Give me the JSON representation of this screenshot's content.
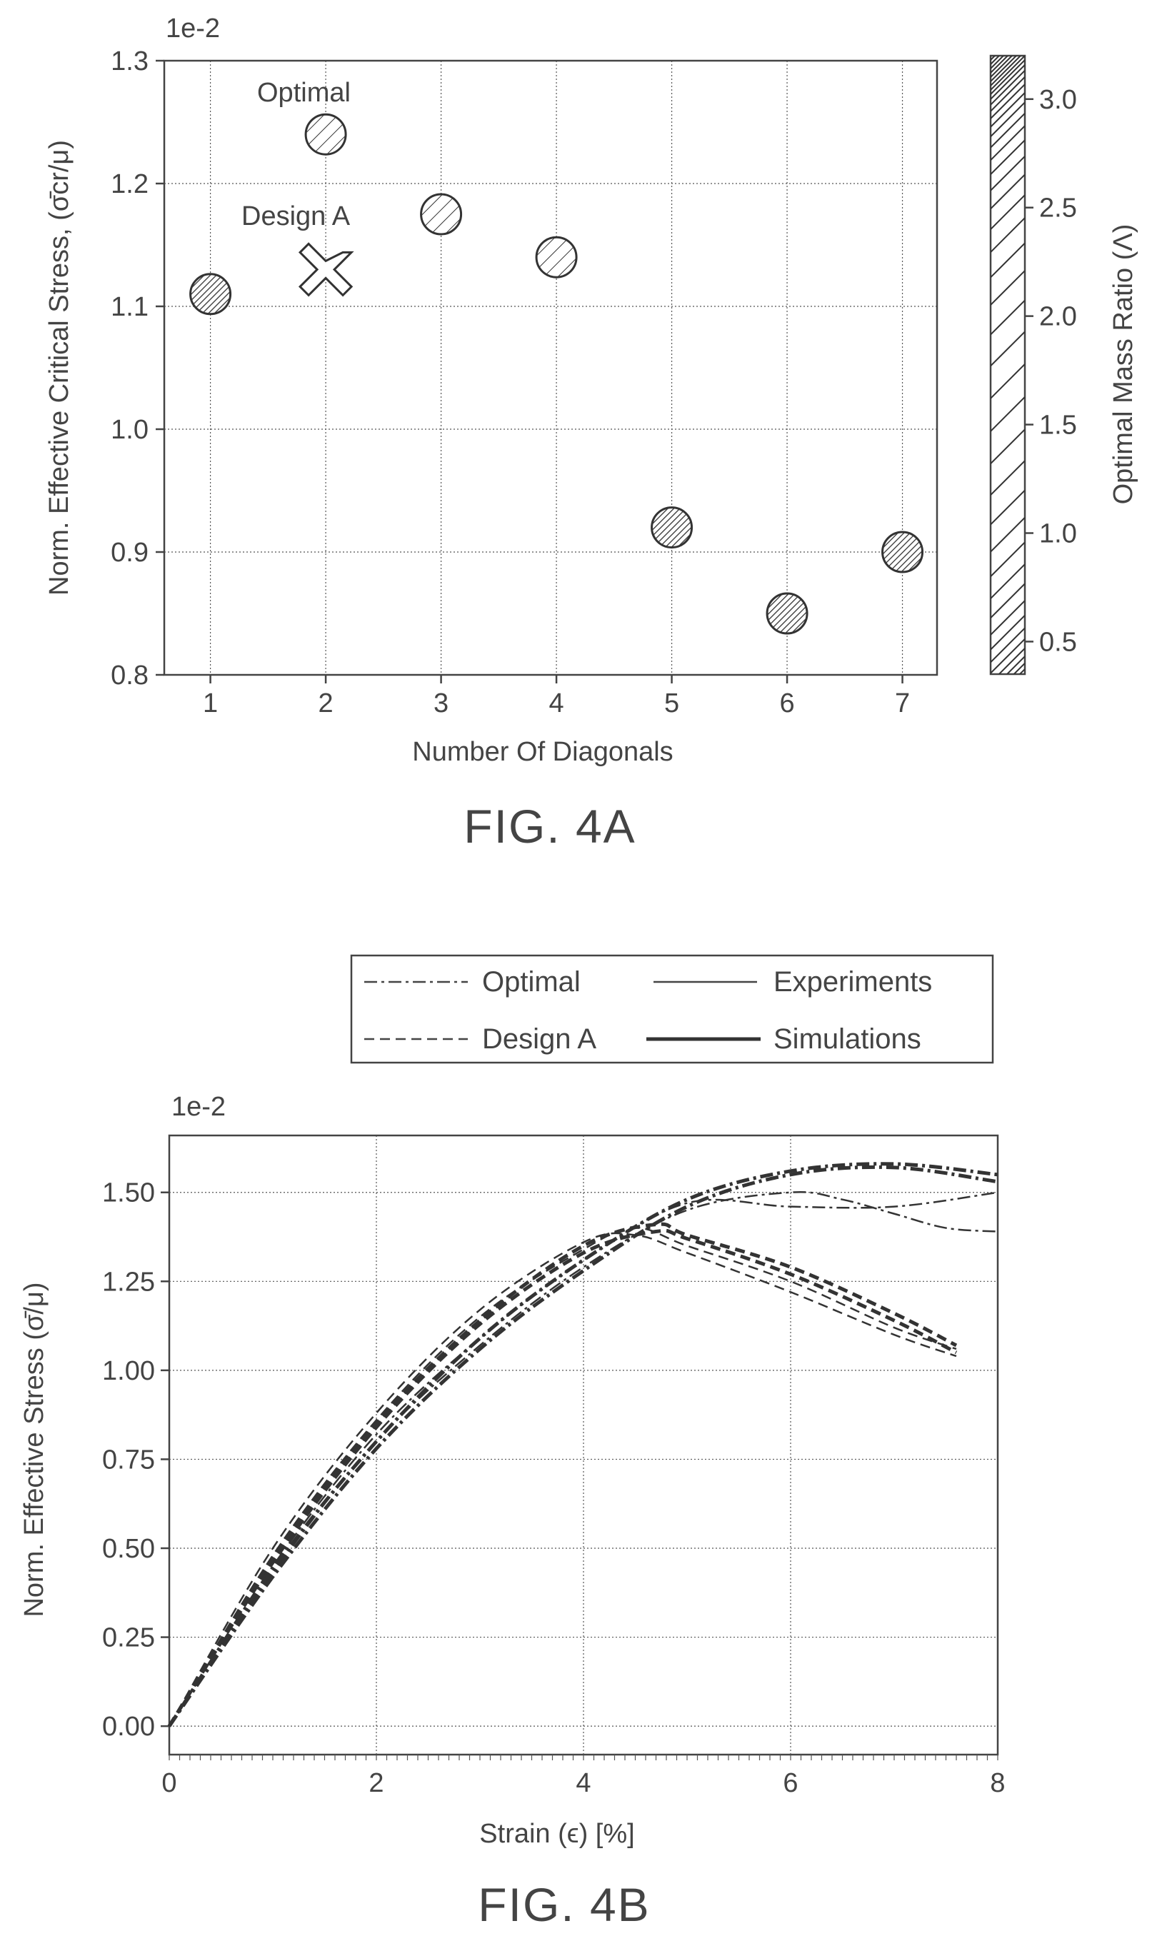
{
  "figure_a": {
    "fig_label": "FIG. 4A",
    "exponent": "1e-2",
    "xlabel": "Number Of Diagonals",
    "ylabel": "Norm. Effective Critical Stress, (σ̄cr/μ)",
    "colorbar_label": "Optimal Mass Ratio (Λ)",
    "colorbar_ticks": [
      "0.5",
      "1.0",
      "1.5",
      "2.0",
      "2.5",
      "3.0"
    ],
    "annotations": {
      "optimal": "Optimal",
      "design_a": "Design A"
    }
  },
  "figure_b": {
    "fig_label": "FIG. 4B",
    "exponent": "1e-2",
    "xlabel": "Strain (ϵ) [%]",
    "ylabel": "Norm. Effective Stress (σ̄/μ)",
    "legend": {
      "optimal": "Optimal",
      "experiments": "Experiments",
      "design_a": "Design A",
      "simulations": "Simulations"
    }
  },
  "chart_data": [
    {
      "type": "scatter",
      "x": [
        1,
        2,
        3,
        4,
        5,
        6,
        7
      ],
      "y": [
        1.11,
        1.24,
        1.175,
        1.14,
        0.92,
        0.85,
        0.9
      ],
      "mass_ratio": [
        2.9,
        0.8,
        0.8,
        0.8,
        3.0,
        2.5,
        2.4
      ],
      "design_a_point": {
        "x": 2,
        "y": 1.13
      },
      "xlabel": "Number Of Diagonals",
      "ylabel": "Norm. Effective Critical Stress, (σ̄cr/μ)",
      "xlim": [
        0.6,
        7.3
      ],
      "ylim": [
        0.8,
        1.3
      ],
      "x_ticks": [
        "1",
        "2",
        "3",
        "4",
        "5",
        "6",
        "7"
      ],
      "y_ticks": [
        "0.8",
        "0.9",
        "1.0",
        "1.1",
        "1.2",
        "1.3"
      ],
      "colorbar_range": [
        0.35,
        3.2
      ],
      "grid": true
    },
    {
      "type": "line",
      "xlim": [
        0,
        8
      ],
      "ylim": [
        -0.08,
        1.66
      ],
      "x_ticks": [
        "0",
        "2",
        "4",
        "6",
        "8"
      ],
      "y_ticks": [
        "0.00",
        "0.25",
        "0.50",
        "0.75",
        "1.00",
        "1.25",
        "1.50"
      ],
      "grid": true,
      "series": [
        {
          "group": "Optimal",
          "kind": "experiment",
          "x": [
            0,
            1,
            2,
            3,
            4,
            5,
            6,
            6.5,
            7,
            7.5,
            8
          ],
          "y": [
            0,
            0.43,
            0.8,
            1.07,
            1.29,
            1.45,
            1.5,
            1.48,
            1.44,
            1.4,
            1.39
          ]
        },
        {
          "group": "Optimal",
          "kind": "experiment",
          "x": [
            0,
            1,
            2,
            3,
            4,
            5,
            6,
            7,
            8
          ],
          "y": [
            0,
            0.45,
            0.82,
            1.09,
            1.31,
            1.47,
            1.46,
            1.46,
            1.5
          ]
        },
        {
          "group": "Optimal",
          "kind": "simulation",
          "x": [
            0,
            1,
            2,
            3,
            4,
            5,
            6,
            7,
            8
          ],
          "y": [
            0,
            0.42,
            0.78,
            1.06,
            1.28,
            1.46,
            1.55,
            1.57,
            1.53
          ]
        },
        {
          "group": "Optimal",
          "kind": "simulation",
          "x": [
            0,
            1,
            2,
            3,
            4,
            5,
            6,
            7,
            8
          ],
          "y": [
            0,
            0.44,
            0.8,
            1.09,
            1.31,
            1.48,
            1.56,
            1.58,
            1.55
          ]
        },
        {
          "group": "Design A",
          "kind": "experiment",
          "x": [
            0,
            1,
            2,
            3,
            4,
            4.5,
            5,
            6,
            7,
            7.6
          ],
          "y": [
            0,
            0.5,
            0.88,
            1.17,
            1.36,
            1.38,
            1.33,
            1.22,
            1.1,
            1.04
          ]
        },
        {
          "group": "Design A",
          "kind": "experiment",
          "x": [
            0,
            1,
            2,
            3,
            4,
            4.5,
            5,
            6,
            7,
            7.6
          ],
          "y": [
            0,
            0.48,
            0.86,
            1.15,
            1.34,
            1.4,
            1.35,
            1.25,
            1.12,
            1.06
          ]
        },
        {
          "group": "Design A",
          "kind": "simulation",
          "x": [
            0,
            1,
            2,
            3,
            4,
            4.7,
            5,
            6,
            7,
            7.6
          ],
          "y": [
            0,
            0.46,
            0.84,
            1.13,
            1.33,
            1.39,
            1.37,
            1.27,
            1.14,
            1.05
          ]
        },
        {
          "group": "Design A",
          "kind": "simulation",
          "x": [
            0,
            1,
            2,
            3,
            4,
            4.7,
            5,
            6,
            7,
            7.6
          ],
          "y": [
            0,
            0.47,
            0.85,
            1.14,
            1.35,
            1.41,
            1.38,
            1.29,
            1.16,
            1.07
          ]
        }
      ]
    }
  ]
}
